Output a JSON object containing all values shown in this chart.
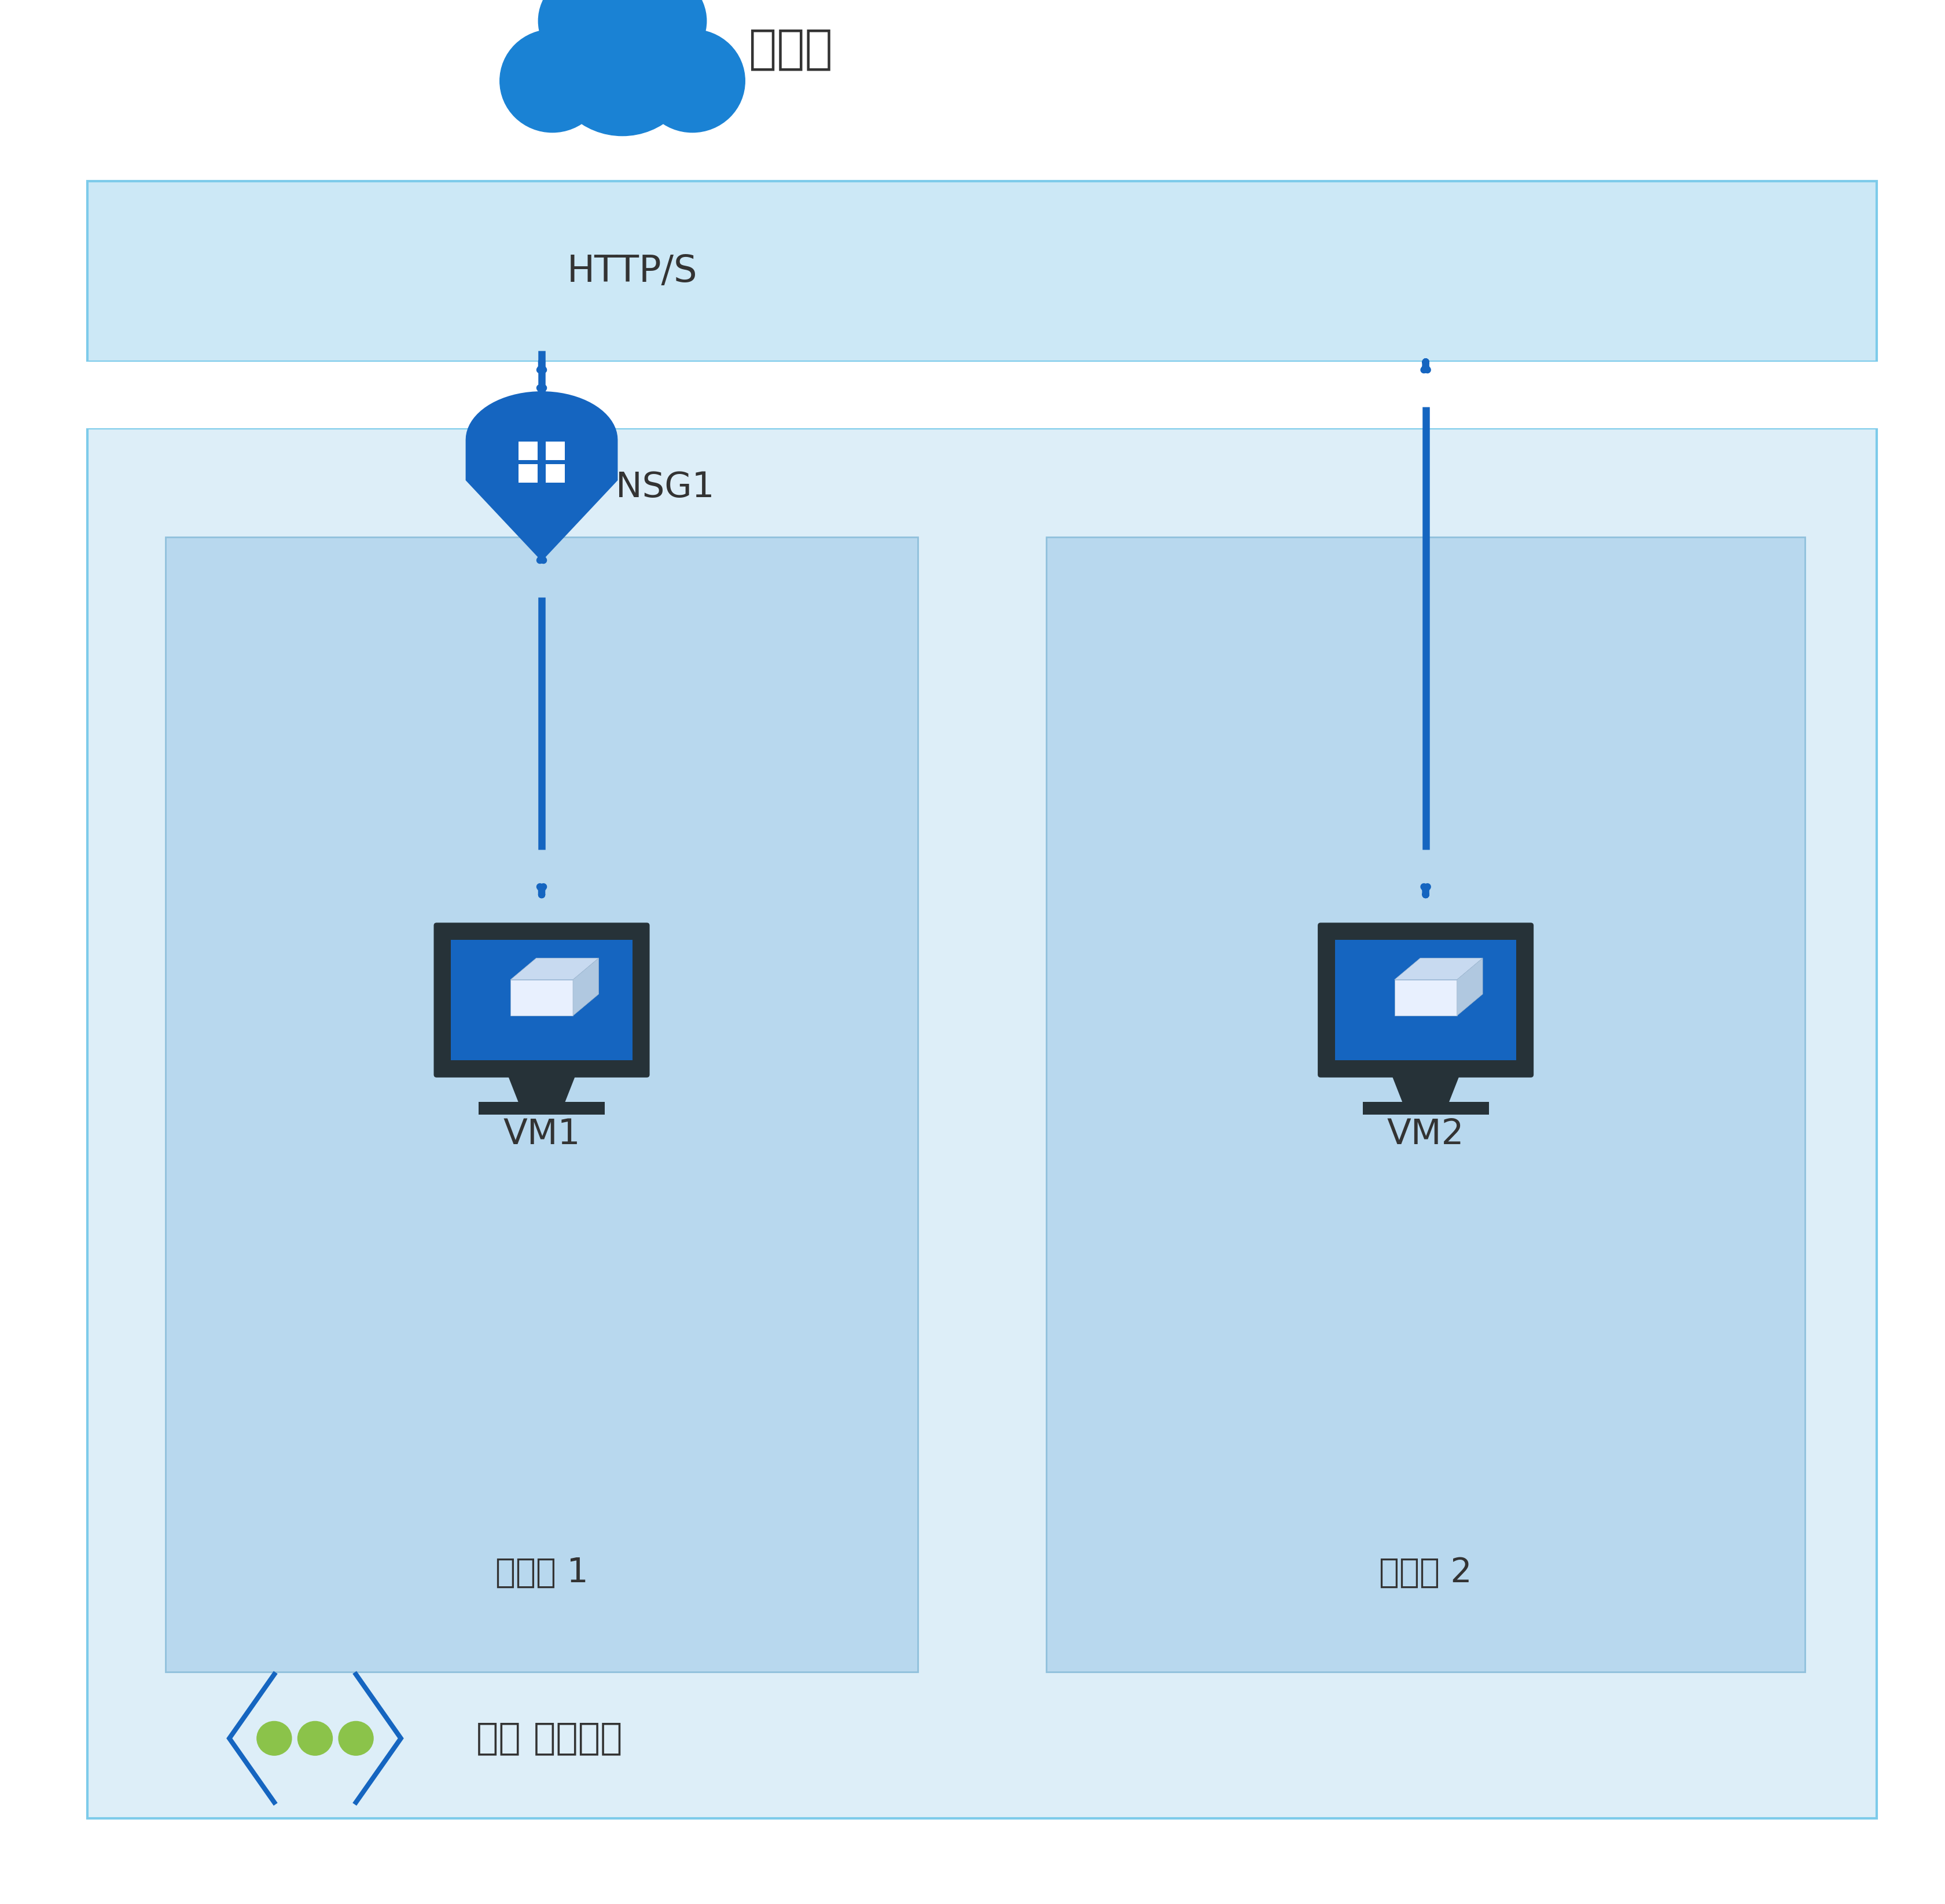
{
  "bg_color": "#ffffff",
  "internet_band_color": "#cce8f6",
  "internet_band_border": "#7dcbea",
  "vnet_box_color": "#ddeef8",
  "vnet_box_border": "#7dcbea",
  "subnet1_color": "#b8d8ee",
  "subnet2_color": "#b8d8ee",
  "subnet_border": "#90c0dc",
  "gap_color": "#f0f8ff",
  "arrow_color": "#1565c0",
  "cloud_color": "#1a82d4",
  "nsg_blue": "#1565c0",
  "nsg_white": "#ffffff",
  "vm_screen_color": "#1565c0",
  "vm_dark": "#263238",
  "vm_stand": "#37474f",
  "vnet_icon_color": "#1565c0",
  "vnet_dots_color": "#8bc34a",
  "text_color": "#333333",
  "title_internet": "인터넷",
  "label_https": "HTTP/S",
  "label_nsg": "NSG1",
  "label_vm1": "VM1",
  "label_vm2": "VM2",
  "label_subnet1": "서브넷 1",
  "label_subnet2": "서브넷 2",
  "label_vnet": "가상 네트워크",
  "font_size_internet": 58,
  "font_size_https": 46,
  "font_size_label": 44,
  "font_size_sub": 42,
  "font_size_vnet": 46
}
